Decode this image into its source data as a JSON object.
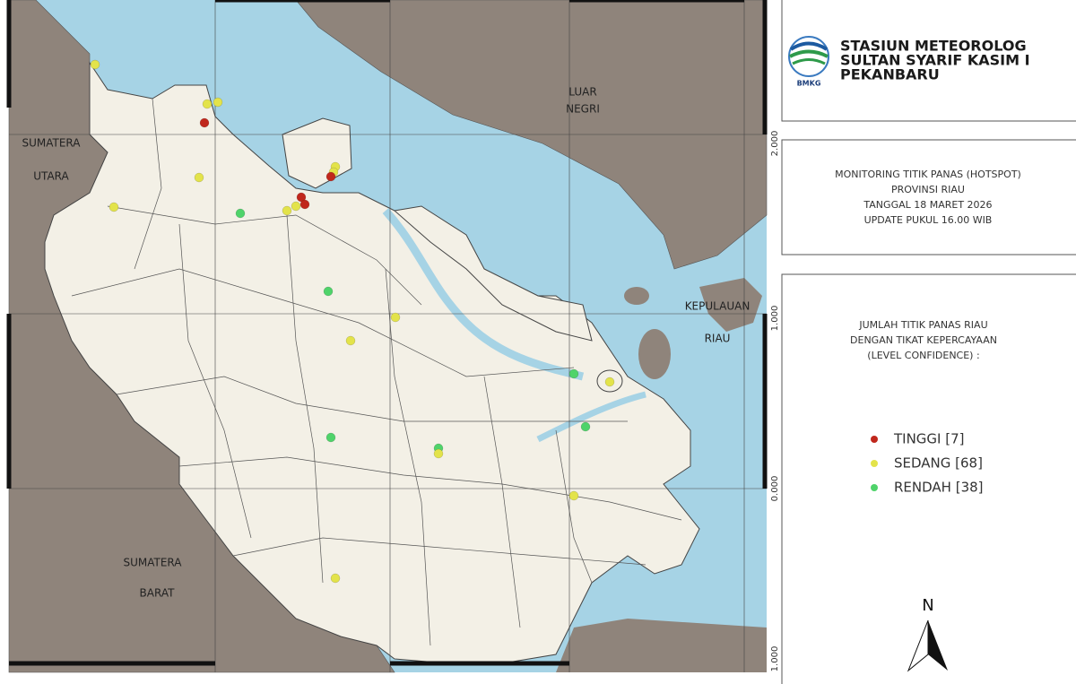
{
  "map": {
    "labels": [
      "SUMATERA",
      "UTARA",
      "SUMATERA",
      "BARAT",
      "LUAR",
      "NEGRI",
      "KEPULAUAN",
      "RIAU"
    ],
    "coords": [
      "2.000",
      "1.000",
      "0.000",
      "1.000"
    ]
  },
  "header": {
    "logo": "BMKG",
    "title": [
      "STASIUN METEOROLOG",
      "SULTAN SYARIF KASIM I",
      "PEKANBARU"
    ]
  },
  "info": [
    "MONITORING TITIK PANAS (HOTSPOT)",
    "PROVINSI RIAU",
    "TANGGAL 18 MARET 2026",
    "UPDATE PUKUL 16.00 WIB"
  ],
  "legend": {
    "title": [
      "JUMLAH TITIK PANAS RIAU",
      "DENGAN TIKAT KEPERCAYAAN",
      "(LEVEL CONFIDENCE) :"
    ],
    "items": [
      {
        "label": "TINGGI [7]",
        "color": "#c0271c"
      },
      {
        "label": "SEDANG [68]",
        "color": "#e3e34a"
      },
      {
        "label": "RENDAH [38]",
        "color": "#4fd36a"
      }
    ]
  },
  "north": "N"
}
